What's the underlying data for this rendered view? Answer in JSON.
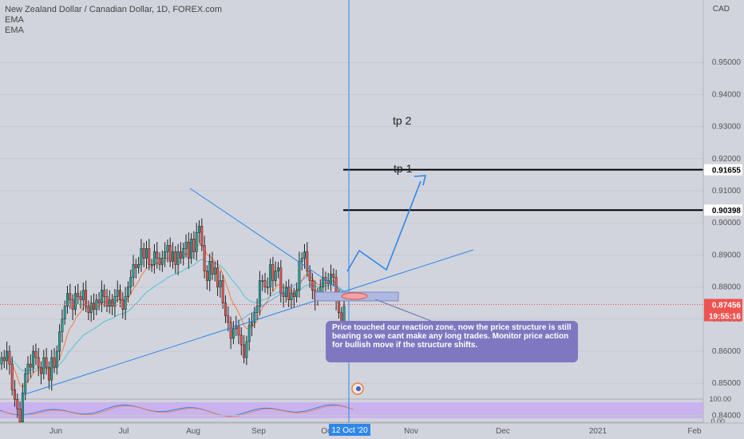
{
  "header": {
    "symbol": "New Zealand Dollar / Canadian Dollar, 1D, FOREX.com",
    "ema1": "EMA",
    "ema2": "EMA"
  },
  "axis": {
    "currency": "CAD",
    "crosshair_date": "12 Oct '20",
    "time_left": "19:55:16",
    "rsi_ticks": [
      "100.00",
      "0.00"
    ]
  },
  "annotations": {
    "tp1": "tp 1",
    "tp2": "tp 2",
    "callout": "Price touched our reaction zone, now the price structure is still bearing so we cant make any long trades. Monitor price action for bullish move if the structure shifts."
  },
  "colors": {
    "background": "#d1d4dc",
    "bull": "#26a69a",
    "bear": "#ef5350",
    "ema_fast": "#f57c3c",
    "ema_slow": "#4fc3d9",
    "drawing": "#2f87e8",
    "callout": "#7f78c0"
  },
  "chart_data": {
    "type": "candlestick",
    "ylim": [
      0.835,
      0.96
    ],
    "y_ticks": [
      "0.95000",
      "0.94000",
      "0.93000",
      "0.92000",
      "0.91000",
      "0.90000",
      "0.89000",
      "0.88000",
      "0.87000",
      "0.86000",
      "0.85000",
      "0.84000"
    ],
    "x_ticks": [
      "Jun",
      "Jul",
      "Aug",
      "Sep",
      "Oct",
      "Nov",
      "Dec",
      "2021",
      "Feb"
    ],
    "current_price": "0.87456",
    "levels": [
      {
        "label": "tp 2",
        "price_label": "0.91655"
      },
      {
        "label": "tp 1",
        "price_label": "0.90398"
      }
    ],
    "closes": [
      0.858,
      0.857,
      0.86,
      0.856,
      0.848,
      0.845,
      0.842,
      0.838,
      0.847,
      0.853,
      0.856,
      0.855,
      0.86,
      0.858,
      0.855,
      0.853,
      0.858,
      0.855,
      0.851,
      0.858,
      0.855,
      0.86,
      0.866,
      0.87,
      0.874,
      0.878,
      0.876,
      0.873,
      0.878,
      0.877,
      0.876,
      0.879,
      0.874,
      0.872,
      0.875,
      0.873,
      0.876,
      0.875,
      0.879,
      0.877,
      0.874,
      0.876,
      0.874,
      0.877,
      0.879,
      0.876,
      0.873,
      0.877,
      0.88,
      0.883,
      0.887,
      0.886,
      0.887,
      0.892,
      0.889,
      0.892,
      0.887,
      0.887,
      0.891,
      0.889,
      0.887,
      0.889,
      0.891,
      0.893,
      0.888,
      0.891,
      0.887,
      0.891,
      0.889,
      0.892,
      0.894,
      0.889,
      0.895,
      0.891,
      0.897,
      0.899,
      0.893,
      0.885,
      0.882,
      0.888,
      0.884,
      0.886,
      0.88,
      0.882,
      0.875,
      0.871,
      0.869,
      0.864,
      0.867,
      0.868,
      0.865,
      0.862,
      0.858,
      0.863,
      0.868,
      0.869,
      0.872,
      0.874,
      0.882,
      0.882,
      0.88,
      0.88,
      0.887,
      0.882,
      0.885,
      0.886,
      0.878,
      0.877,
      0.88,
      0.876,
      0.878,
      0.877,
      0.879,
      0.888,
      0.889,
      0.891,
      0.885,
      0.882,
      0.879,
      0.876,
      0.878,
      0.88,
      0.883,
      0.882,
      0.881,
      0.884,
      0.883,
      0.876,
      0.872,
      0.869,
      0.874
    ]
  }
}
